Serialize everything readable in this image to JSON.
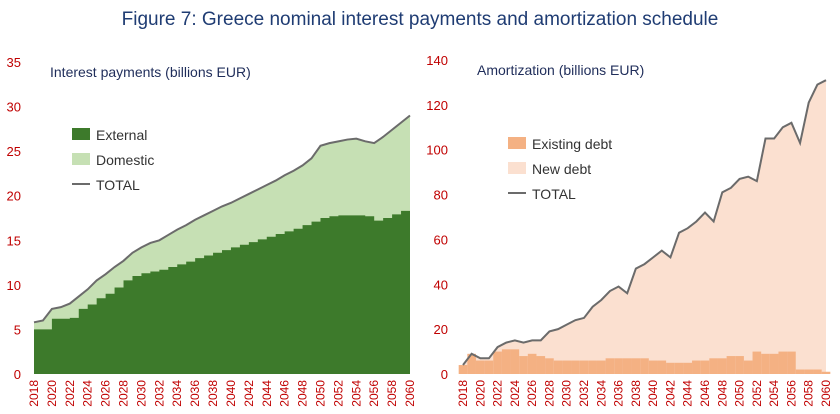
{
  "figure_title": "Figure 7: Greece nominal interest payments and amortization schedule",
  "colors": {
    "external": "#3d7a2b",
    "domestic": "#c6e0b4",
    "existing_debt": "#f4b183",
    "new_debt": "#fbe0d0",
    "total_line": "#6b6b6b",
    "axis_text": "#c00000",
    "title_text": "#1f3c73"
  },
  "chart_data": [
    {
      "type": "area",
      "title": "Interest payments (billions EUR)",
      "ylim": [
        0,
        35
      ],
      "yticks": [
        0,
        5,
        10,
        15,
        20,
        25,
        30,
        35
      ],
      "x": [
        2018,
        2019,
        2020,
        2021,
        2022,
        2023,
        2024,
        2025,
        2026,
        2027,
        2028,
        2029,
        2030,
        2031,
        2032,
        2033,
        2034,
        2035,
        2036,
        2037,
        2038,
        2039,
        2040,
        2041,
        2042,
        2043,
        2044,
        2045,
        2046,
        2047,
        2048,
        2049,
        2050,
        2051,
        2052,
        2053,
        2054,
        2055,
        2056,
        2057,
        2058,
        2059,
        2060
      ],
      "xticks": [
        2018,
        2020,
        2022,
        2024,
        2026,
        2028,
        2030,
        2032,
        2034,
        2036,
        2038,
        2040,
        2042,
        2044,
        2046,
        2048,
        2050,
        2052,
        2054,
        2056,
        2058,
        2060
      ],
      "legend": [
        "External",
        "Domestic",
        "TOTAL"
      ],
      "series": [
        {
          "name": "External",
          "values": [
            5.0,
            5.0,
            6.2,
            6.2,
            6.3,
            7.3,
            7.8,
            8.5,
            9.0,
            9.7,
            10.5,
            11.0,
            11.3,
            11.5,
            11.7,
            12.0,
            12.3,
            12.6,
            13.0,
            13.3,
            13.6,
            13.9,
            14.2,
            14.5,
            14.8,
            15.1,
            15.4,
            15.7,
            16.0,
            16.3,
            16.7,
            17.1,
            17.5,
            17.7,
            17.8,
            17.8,
            17.8,
            17.7,
            17.2,
            17.5,
            17.9,
            18.3,
            18.7
          ]
        },
        {
          "name": "Domestic",
          "values": [
            0.8,
            1.0,
            1.1,
            1.3,
            1.6,
            1.4,
            1.7,
            2.0,
            2.2,
            2.3,
            2.2,
            2.6,
            2.9,
            3.2,
            3.3,
            3.6,
            3.9,
            4.1,
            4.3,
            4.5,
            4.7,
            4.9,
            5.0,
            5.2,
            5.4,
            5.6,
            5.8,
            6.0,
            6.3,
            6.5,
            6.7,
            7.1,
            8.1,
            8.2,
            8.3,
            8.5,
            8.6,
            8.4,
            8.7,
            9.1,
            9.5,
            9.9,
            10.3
          ]
        },
        {
          "name": "TOTAL",
          "values": [
            5.8,
            6.0,
            7.3,
            7.5,
            7.9,
            8.7,
            9.5,
            10.5,
            11.2,
            12.0,
            12.7,
            13.6,
            14.2,
            14.7,
            15.0,
            15.6,
            16.2,
            16.7,
            17.3,
            17.8,
            18.3,
            18.8,
            19.2,
            19.7,
            20.2,
            20.7,
            21.2,
            21.7,
            22.3,
            22.8,
            23.4,
            24.2,
            25.6,
            25.9,
            26.1,
            26.3,
            26.4,
            26.1,
            25.9,
            26.6,
            27.4,
            28.2,
            29.0
          ]
        }
      ]
    },
    {
      "type": "bar",
      "title": "Amortization (billions EUR)",
      "ylim": [
        0,
        140
      ],
      "yticks": [
        0,
        20,
        40,
        60,
        80,
        100,
        120,
        140
      ],
      "x": [
        2018,
        2019,
        2020,
        2021,
        2022,
        2023,
        2024,
        2025,
        2026,
        2027,
        2028,
        2029,
        2030,
        2031,
        2032,
        2033,
        2034,
        2035,
        2036,
        2037,
        2038,
        2039,
        2040,
        2041,
        2042,
        2043,
        2044,
        2045,
        2046,
        2047,
        2048,
        2049,
        2050,
        2051,
        2052,
        2053,
        2054,
        2055,
        2056,
        2057,
        2058,
        2059,
        2060
      ],
      "xticks": [
        2018,
        2020,
        2022,
        2024,
        2026,
        2028,
        2030,
        2032,
        2034,
        2036,
        2038,
        2040,
        2042,
        2044,
        2046,
        2048,
        2050,
        2052,
        2054,
        2056,
        2058,
        2060
      ],
      "legend": [
        "Existing debt",
        "New debt",
        "TOTAL"
      ],
      "series": [
        {
          "name": "Existing debt",
          "values": [
            4,
            9,
            6,
            6,
            10,
            11,
            11,
            8,
            9,
            8,
            7,
            6,
            6,
            6,
            6,
            6,
            6,
            7,
            7,
            7,
            7,
            7,
            6,
            6,
            5,
            5,
            5,
            6,
            6,
            7,
            7,
            8,
            8,
            6,
            10,
            9,
            9,
            10,
            10,
            2,
            2,
            2,
            1
          ]
        },
        {
          "name": "New debt",
          "values": [
            0,
            0,
            1,
            1,
            2,
            3,
            4,
            6,
            6,
            7,
            12,
            14,
            16,
            18,
            19,
            24,
            27,
            30,
            32,
            29,
            40,
            42,
            46,
            49,
            47,
            58,
            60,
            62,
            66,
            61,
            74,
            75,
            79,
            82,
            76,
            96,
            96,
            100,
            102,
            101,
            119,
            127,
            130
          ]
        },
        {
          "name": "TOTAL",
          "values": [
            4,
            9,
            7,
            7,
            12,
            14,
            15,
            14,
            15,
            15,
            19,
            20,
            22,
            24,
            25,
            30,
            33,
            37,
            39,
            36,
            47,
            49,
            52,
            55,
            52,
            63,
            65,
            68,
            72,
            68,
            81,
            83,
            87,
            88,
            86,
            105,
            105,
            110,
            112,
            103,
            121,
            129,
            131
          ]
        }
      ]
    }
  ]
}
